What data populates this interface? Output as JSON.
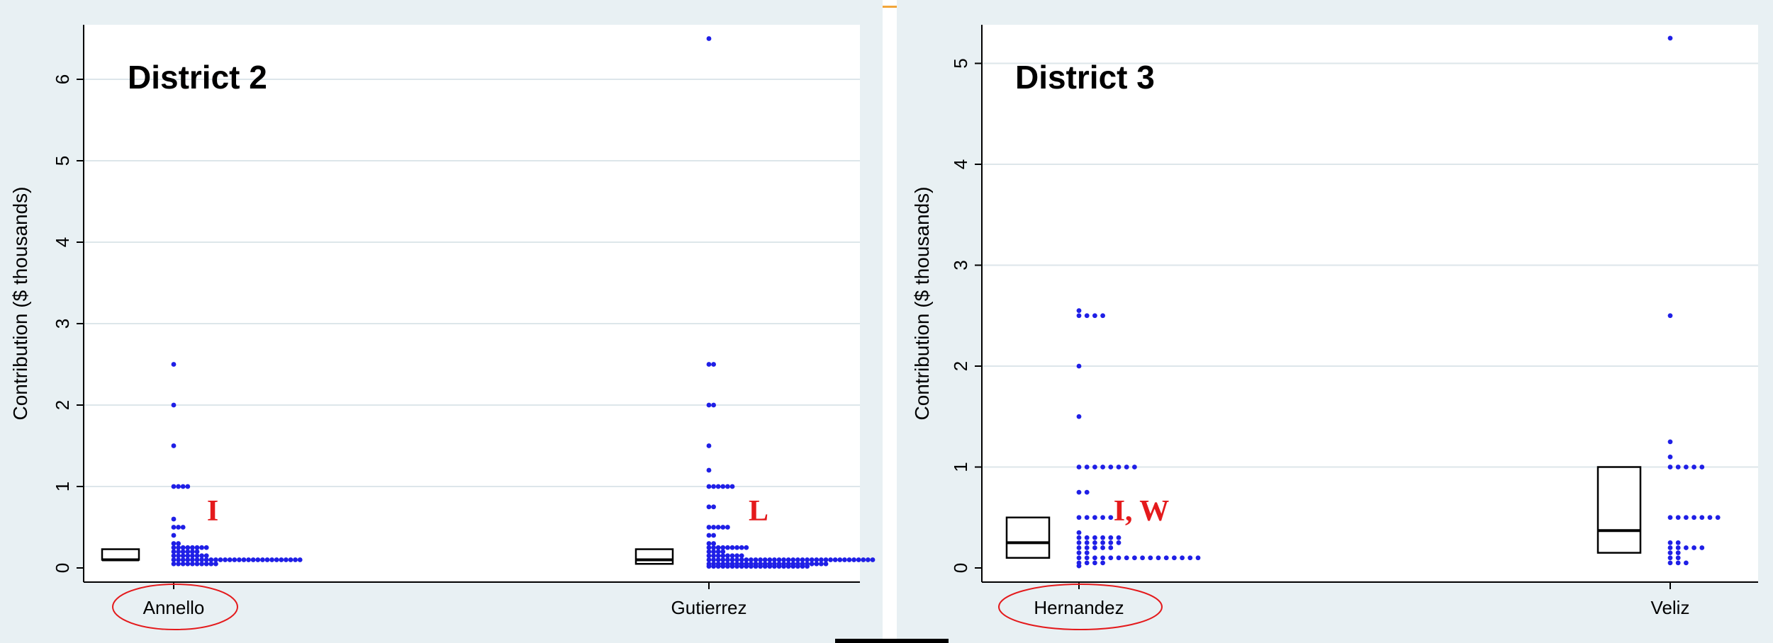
{
  "colors": {
    "dot": "#1f1fe6",
    "annotation": "#e41a1c",
    "box": "#000000",
    "grid": "#dde6ea",
    "page": "#e8f0f3"
  },
  "chart_data": [
    {
      "type": "scatter",
      "title": "District 2",
      "xlabel": "",
      "ylabel": "Contribution ($ thousands)",
      "ylim": [
        0,
        6.65
      ],
      "yticks": [
        "0",
        "1",
        "2",
        "3",
        "4",
        "5",
        "6"
      ],
      "grid": true,
      "categories": [
        {
          "name": "Annello",
          "circled": true,
          "annotation": "I",
          "box": {
            "q1": 0.1,
            "median": 0.1,
            "q3": 0.23
          },
          "dots": [
            {
              "y": 2.5,
              "n": 1
            },
            {
              "y": 2.0,
              "n": 1
            },
            {
              "y": 1.5,
              "n": 1
            },
            {
              "y": 1.0,
              "n": 4
            },
            {
              "y": 0.6,
              "n": 1
            },
            {
              "y": 0.5,
              "n": 3
            },
            {
              "y": 0.4,
              "n": 1
            },
            {
              "y": 0.3,
              "n": 2
            },
            {
              "y": 0.25,
              "n": 8
            },
            {
              "y": 0.2,
              "n": 6
            },
            {
              "y": 0.15,
              "n": 8
            },
            {
              "y": 0.1,
              "n": 28
            },
            {
              "y": 0.05,
              "n": 10
            }
          ]
        },
        {
          "name": "Gutierrez",
          "circled": false,
          "annotation": "L",
          "box": {
            "q1": 0.05,
            "median": 0.1,
            "q3": 0.23
          },
          "dots": [
            {
              "y": 6.5,
              "n": 1
            },
            {
              "y": 2.5,
              "n": 2
            },
            {
              "y": 2.0,
              "n": 2
            },
            {
              "y": 1.5,
              "n": 1
            },
            {
              "y": 1.2,
              "n": 1
            },
            {
              "y": 1.0,
              "n": 6
            },
            {
              "y": 0.75,
              "n": 2
            },
            {
              "y": 0.5,
              "n": 5
            },
            {
              "y": 0.4,
              "n": 2
            },
            {
              "y": 0.3,
              "n": 2
            },
            {
              "y": 0.25,
              "n": 9
            },
            {
              "y": 0.2,
              "n": 4
            },
            {
              "y": 0.15,
              "n": 8
            },
            {
              "y": 0.1,
              "n": 36
            },
            {
              "y": 0.05,
              "n": 26
            },
            {
              "y": 0.02,
              "n": 22
            }
          ]
        }
      ]
    },
    {
      "type": "scatter",
      "title": "District 3",
      "xlabel": "",
      "ylabel": "Contribution ($ thousands)",
      "ylim": [
        0,
        5.35
      ],
      "yticks": [
        "0",
        "1",
        "2",
        "3",
        "4",
        "5"
      ],
      "grid": true,
      "categories": [
        {
          "name": "Hernandez",
          "circled": true,
          "annotation": "I, W",
          "box": {
            "q1": 0.1,
            "median": 0.25,
            "q3": 0.5
          },
          "dots": [
            {
              "y": 2.55,
              "n": 1
            },
            {
              "y": 2.5,
              "n": 4
            },
            {
              "y": 2.0,
              "n": 1
            },
            {
              "y": 1.5,
              "n": 1
            },
            {
              "y": 1.0,
              "n": 8
            },
            {
              "y": 0.75,
              "n": 2
            },
            {
              "y": 0.5,
              "n": 5
            },
            {
              "y": 0.35,
              "n": 1
            },
            {
              "y": 0.3,
              "n": 6
            },
            {
              "y": 0.25,
              "n": 6
            },
            {
              "y": 0.2,
              "n": 5
            },
            {
              "y": 0.15,
              "n": 2
            },
            {
              "y": 0.1,
              "n": 16
            },
            {
              "y": 0.05,
              "n": 4
            },
            {
              "y": 0.02,
              "n": 1
            }
          ]
        },
        {
          "name": "Veliz",
          "circled": false,
          "annotation": "",
          "box": {
            "q1": 0.15,
            "median": 0.37,
            "q3": 1.0
          },
          "dots": [
            {
              "y": 5.25,
              "n": 1
            },
            {
              "y": 2.5,
              "n": 1
            },
            {
              "y": 1.25,
              "n": 1
            },
            {
              "y": 1.1,
              "n": 1
            },
            {
              "y": 1.0,
              "n": 5
            },
            {
              "y": 0.5,
              "n": 7
            },
            {
              "y": 0.25,
              "n": 2
            },
            {
              "y": 0.2,
              "n": 5
            },
            {
              "y": 0.15,
              "n": 2
            },
            {
              "y": 0.1,
              "n": 2
            },
            {
              "y": 0.05,
              "n": 3
            }
          ]
        }
      ]
    }
  ]
}
